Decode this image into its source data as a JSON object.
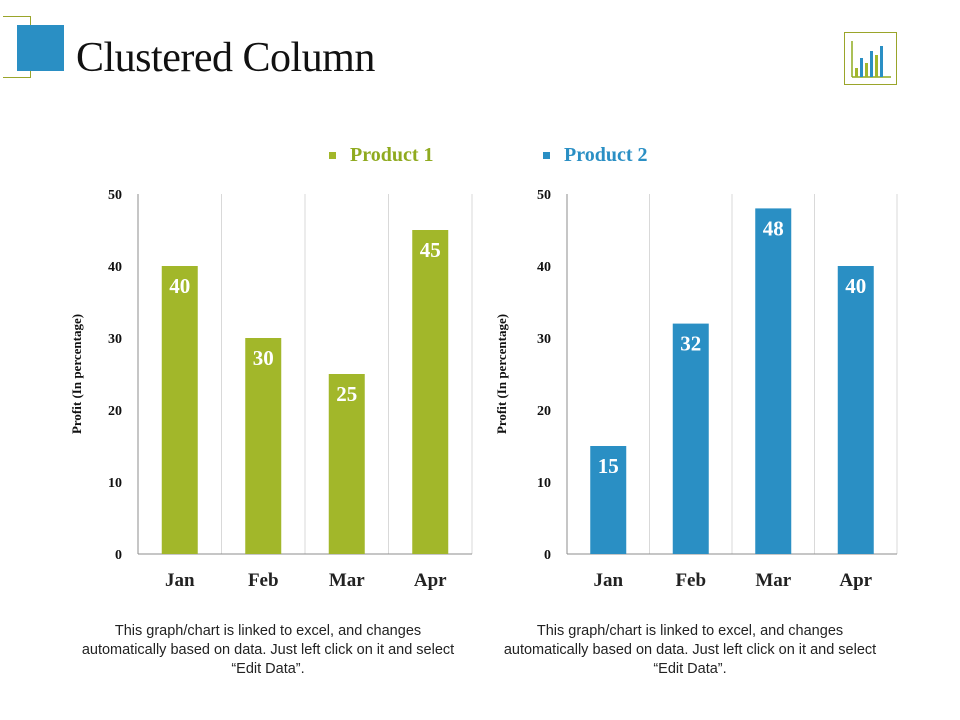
{
  "title": "Clustered Column",
  "legend": {
    "product1": "Product 1",
    "product2": "Product 2"
  },
  "colors": {
    "product1": "#a2b72a",
    "product2": "#2a8fc4",
    "accent_outline": "#9aa52a"
  },
  "icons": {
    "corner_logo": "square-logo-icon",
    "chart_icon": "bar-chart-icon"
  },
  "notes": {
    "left": "This graph/chart is linked to excel, and changes automatically based on data. Just left click on it and select “Edit Data”.",
    "right": "This graph/chart is linked to excel, and changes automatically based on data. Just left click on it and select “Edit Data”."
  },
  "chart_data": [
    {
      "type": "bar",
      "categories": [
        "Jan",
        "Feb",
        "Mar",
        "Apr"
      ],
      "series": [
        {
          "name": "Product 1",
          "values": [
            40,
            30,
            25,
            45
          ]
        }
      ],
      "ylabel": "Profit  (In percentage)",
      "ylim": [
        0,
        50
      ],
      "yticks": [
        0,
        10,
        20,
        30,
        40,
        50
      ],
      "grid": "vertical",
      "data_labels": true
    },
    {
      "type": "bar",
      "categories": [
        "Jan",
        "Feb",
        "Mar",
        "Apr"
      ],
      "series": [
        {
          "name": "Product 2",
          "values": [
            15,
            32,
            48,
            40
          ]
        }
      ],
      "ylabel": "Profit  (In percentage)",
      "ylim": [
        0,
        50
      ],
      "yticks": [
        0,
        10,
        20,
        30,
        40,
        50
      ],
      "grid": "vertical",
      "data_labels": true
    }
  ]
}
